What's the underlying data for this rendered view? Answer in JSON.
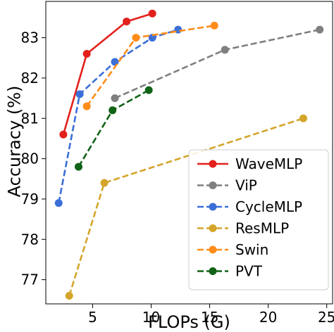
{
  "chart_data": {
    "type": "line",
    "xlabel": "FLOPs (G)",
    "ylabel": "Accuracy (%)",
    "xlim": [
      1,
      25.5
    ],
    "ylim": [
      76.4,
      83.9
    ],
    "xticks": [
      5,
      10,
      15,
      20,
      25
    ],
    "yticks": [
      77,
      78,
      79,
      80,
      81,
      82,
      83
    ],
    "grid": false,
    "legend_position": "lower-right",
    "series": [
      {
        "name": "WaveMLP",
        "color": "#e3201b",
        "line_style": "solid",
        "x": [
          2.5,
          4.5,
          7.9,
          10.1
        ],
        "y": [
          80.6,
          82.6,
          83.4,
          83.6
        ]
      },
      {
        "name": "ViP",
        "color": "#7f7f7f",
        "line_style": "dashed",
        "x": [
          6.9,
          16.3,
          24.4
        ],
        "y": [
          81.5,
          82.7,
          83.2
        ]
      },
      {
        "name": "CycleMLP",
        "color": "#3b6fd8",
        "line_style": "dashed",
        "x": [
          2.1,
          3.9,
          6.9,
          10.1,
          12.3
        ],
        "y": [
          78.9,
          81.6,
          82.4,
          83.0,
          83.2
        ]
      },
      {
        "name": "ResMLP",
        "color": "#d4a52a",
        "line_style": "dashed",
        "x": [
          3.0,
          6.0,
          23.0
        ],
        "y": [
          76.6,
          79.4,
          81.0
        ]
      },
      {
        "name": "Swin",
        "color": "#ff8c1a",
        "line_style": "dashed",
        "x": [
          4.5,
          8.7,
          15.4
        ],
        "y": [
          81.3,
          83.0,
          83.3
        ]
      },
      {
        "name": "PVT",
        "color": "#116316",
        "line_style": "dashed",
        "x": [
          3.8,
          6.7,
          9.8
        ],
        "y": [
          79.8,
          81.2,
          81.7
        ]
      }
    ]
  }
}
